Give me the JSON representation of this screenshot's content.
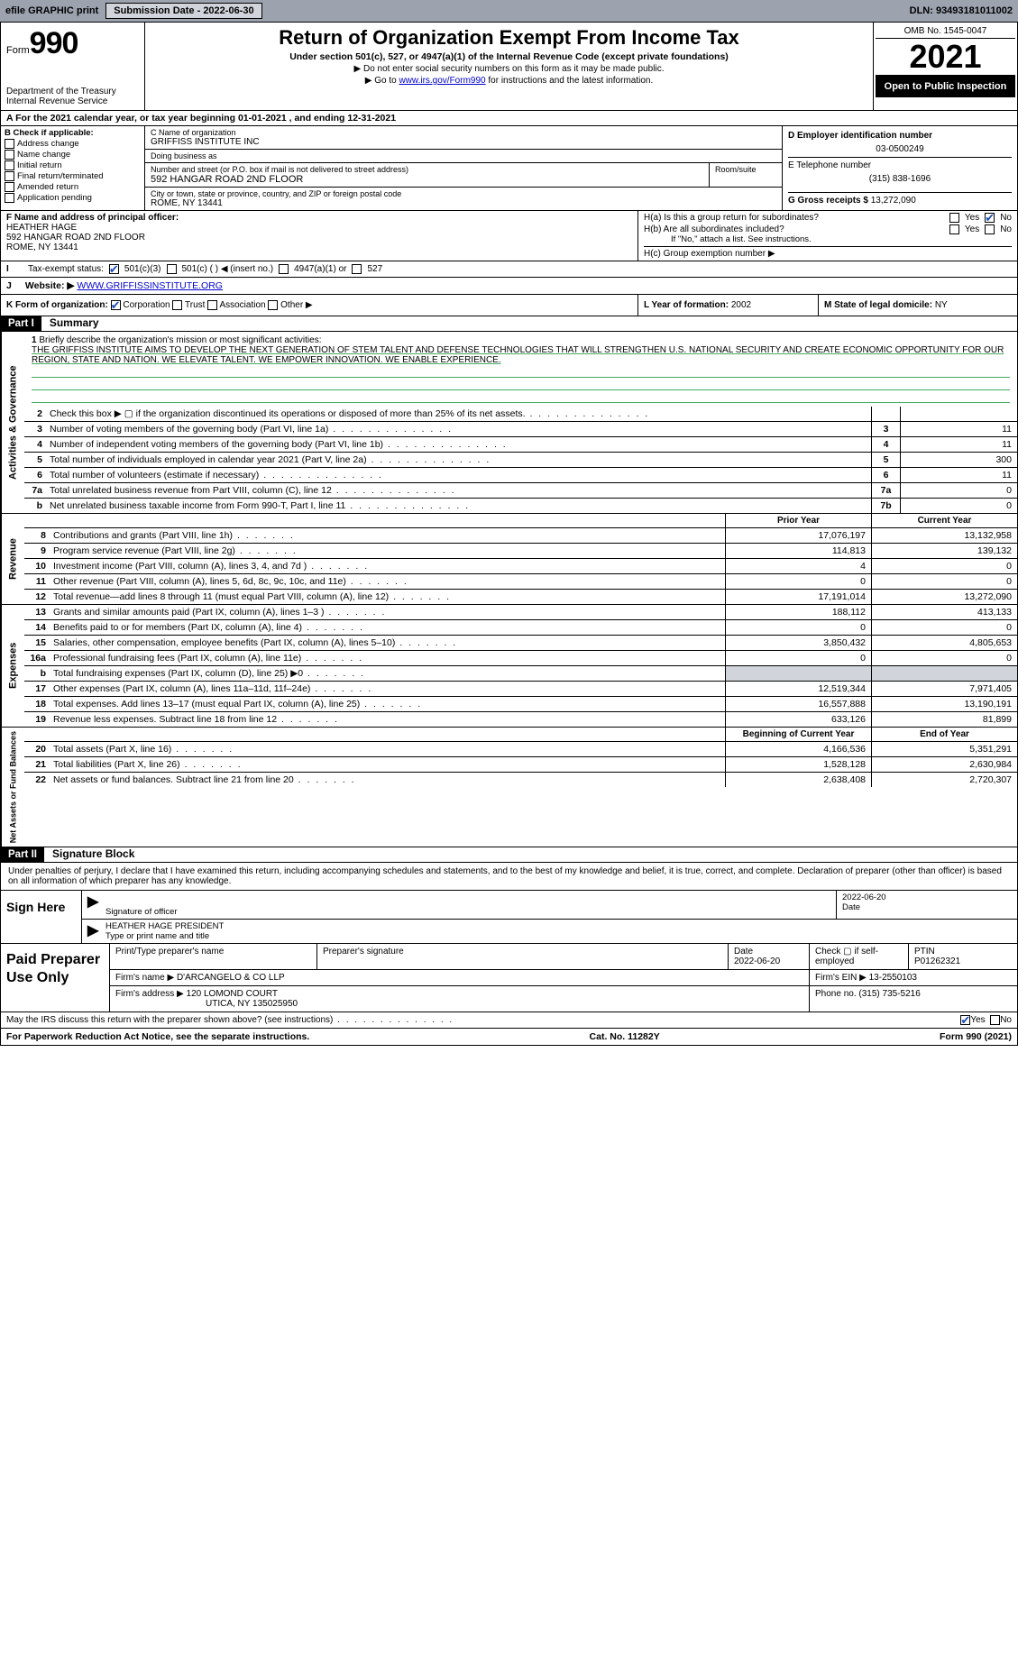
{
  "topbar": {
    "efile": "efile GRAPHIC print",
    "submission_label": "Submission Date - 2022-06-30",
    "dln": "DLN: 93493181011002"
  },
  "header": {
    "form_prefix": "Form",
    "form_number": "990",
    "title": "Return of Organization Exempt From Income Tax",
    "subtitle": "Under section 501(c), 527, or 4947(a)(1) of the Internal Revenue Code (except private foundations)",
    "note1": "▶ Do not enter social security numbers on this form as it may be made public.",
    "note2_pre": "▶ Go to ",
    "note2_link": "www.irs.gov/Form990",
    "note2_post": " for instructions and the latest information.",
    "dept": "Department of the Treasury",
    "irs": "Internal Revenue Service",
    "omb": "OMB No. 1545-0047",
    "year": "2021",
    "open_public": "Open to Public Inspection"
  },
  "period": {
    "label_a": "A For the 2021 calendar year, or tax year beginning ",
    "begin": "01-01-2021",
    "mid": "  , and ending ",
    "end": "12-31-2021"
  },
  "colB": {
    "header": "B Check if applicable:",
    "opts": [
      "Address change",
      "Name change",
      "Initial return",
      "Final return/terminated",
      "Amended return",
      "Application pending"
    ]
  },
  "colC": {
    "name_lbl": "C Name of organization",
    "name": "GRIFFISS INSTITUTE INC",
    "dba_lbl": "Doing business as",
    "dba": "",
    "street_lbl": "Number and street (or P.O. box if mail is not delivered to street address)",
    "room_lbl": "Room/suite",
    "street": "592 HANGAR ROAD 2ND FLOOR",
    "city_lbl": "City or town, state or province, country, and ZIP or foreign postal code",
    "city": "ROME, NY  13441"
  },
  "colD": {
    "ein_lbl": "D Employer identification number",
    "ein": "03-0500249",
    "phone_lbl": "E Telephone number",
    "phone": "(315) 838-1696",
    "gross_lbl": "G Gross receipts $ ",
    "gross": "13,272,090"
  },
  "rowF": {
    "lbl": "F Name and address of principal officer:",
    "name": "HEATHER HAGE",
    "addr1": "592 HANGAR ROAD 2ND FLOOR",
    "addr2": "ROME, NY  13441",
    "ha_lbl": "H(a)  Is this a group return for subordinates?",
    "hb_lbl": "H(b)  Are all subordinates included?",
    "hb_note": "If \"No,\" attach a list. See instructions.",
    "hc_lbl": "H(c)  Group exemption number ▶",
    "yes": "Yes",
    "no": "No"
  },
  "rowI": {
    "lbl": "Tax-exempt status:",
    "o1": "501(c)(3)",
    "o2": "501(c) (   ) ◀ (insert no.)",
    "o3": "4947(a)(1) or",
    "o4": "527"
  },
  "rowJ": {
    "lbl": "Website: ▶ ",
    "url": "WWW.GRIFFISSINSTITUTE.ORG"
  },
  "rowK": {
    "lbl": "K Form of organization:",
    "opts": [
      "Corporation",
      "Trust",
      "Association",
      "Other ▶"
    ],
    "l_lbl": "L Year of formation: ",
    "l_val": "2002",
    "m_lbl": "M State of legal domicile: ",
    "m_val": "NY"
  },
  "part1": {
    "hdr": "Part I",
    "title": "Summary"
  },
  "mission": {
    "num": "1",
    "lbl": "Briefly describe the organization's mission or most significant activities:",
    "text": "THE GRIFFISS INSTITUTE AIMS TO DEVELOP THE NEXT GENERATION OF STEM TALENT AND DEFENSE TECHNOLOGIES THAT WILL STRENGTHEN U.S. NATIONAL SECURITY AND CREATE ECONOMIC OPPORTUNITY FOR OUR REGION, STATE AND NATION. WE ELEVATE TALENT. WE EMPOWER INNOVATION. WE ENABLE EXPERIENCE."
  },
  "gov_rows": [
    {
      "n": "2",
      "txt": "Check this box ▶ ▢  if the organization discontinued its operations or disposed of more than 25% of its net assets.",
      "box": "",
      "val": ""
    },
    {
      "n": "3",
      "txt": "Number of voting members of the governing body (Part VI, line 1a)",
      "box": "3",
      "val": "11"
    },
    {
      "n": "4",
      "txt": "Number of independent voting members of the governing body (Part VI, line 1b)",
      "box": "4",
      "val": "11"
    },
    {
      "n": "5",
      "txt": "Total number of individuals employed in calendar year 2021 (Part V, line 2a)",
      "box": "5",
      "val": "300"
    },
    {
      "n": "6",
      "txt": "Total number of volunteers (estimate if necessary)",
      "box": "6",
      "val": "11"
    },
    {
      "n": "7a",
      "txt": "Total unrelated business revenue from Part VIII, column (C), line 12",
      "box": "7a",
      "val": "0"
    },
    {
      "n": "b",
      "txt": "Net unrelated business taxable income from Form 990-T, Part I, line 11",
      "box": "7b",
      "val": "0"
    }
  ],
  "col_hdrs": {
    "prior": "Prior Year",
    "current": "Current Year"
  },
  "revenue": [
    {
      "n": "8",
      "txt": "Contributions and grants (Part VIII, line 1h)",
      "p": "17,076,197",
      "c": "13,132,958"
    },
    {
      "n": "9",
      "txt": "Program service revenue (Part VIII, line 2g)",
      "p": "114,813",
      "c": "139,132"
    },
    {
      "n": "10",
      "txt": "Investment income (Part VIII, column (A), lines 3, 4, and 7d )",
      "p": "4",
      "c": "0"
    },
    {
      "n": "11",
      "txt": "Other revenue (Part VIII, column (A), lines 5, 6d, 8c, 9c, 10c, and 11e)",
      "p": "0",
      "c": "0"
    },
    {
      "n": "12",
      "txt": "Total revenue—add lines 8 through 11 (must equal Part VIII, column (A), line 12)",
      "p": "17,191,014",
      "c": "13,272,090"
    }
  ],
  "expenses": [
    {
      "n": "13",
      "txt": "Grants and similar amounts paid (Part IX, column (A), lines 1–3 )",
      "p": "188,112",
      "c": "413,133"
    },
    {
      "n": "14",
      "txt": "Benefits paid to or for members (Part IX, column (A), line 4)",
      "p": "0",
      "c": "0"
    },
    {
      "n": "15",
      "txt": "Salaries, other compensation, employee benefits (Part IX, column (A), lines 5–10)",
      "p": "3,850,432",
      "c": "4,805,653"
    },
    {
      "n": "16a",
      "txt": "Professional fundraising fees (Part IX, column (A), line 11e)",
      "p": "0",
      "c": "0"
    },
    {
      "n": "b",
      "txt": "Total fundraising expenses (Part IX, column (D), line 25) ▶0",
      "p": "",
      "c": "",
      "grey": true
    },
    {
      "n": "17",
      "txt": "Other expenses (Part IX, column (A), lines 11a–11d, 11f–24e)",
      "p": "12,519,344",
      "c": "7,971,405"
    },
    {
      "n": "18",
      "txt": "Total expenses. Add lines 13–17 (must equal Part IX, column (A), line 25)",
      "p": "16,557,888",
      "c": "13,190,191"
    },
    {
      "n": "19",
      "txt": "Revenue less expenses. Subtract line 18 from line 12",
      "p": "633,126",
      "c": "81,899"
    }
  ],
  "net_hdrs": {
    "begin": "Beginning of Current Year",
    "end": "End of Year"
  },
  "netassets": [
    {
      "n": "20",
      "txt": "Total assets (Part X, line 16)",
      "p": "4,166,536",
      "c": "5,351,291"
    },
    {
      "n": "21",
      "txt": "Total liabilities (Part X, line 26)",
      "p": "1,528,128",
      "c": "2,630,984"
    },
    {
      "n": "22",
      "txt": "Net assets or fund balances. Subtract line 21 from line 20",
      "p": "2,638,408",
      "c": "2,720,307"
    }
  ],
  "vtabs": {
    "gov": "Activities & Governance",
    "rev": "Revenue",
    "exp": "Expenses",
    "net": "Net Assets or Fund Balances"
  },
  "part2": {
    "hdr": "Part II",
    "title": "Signature Block"
  },
  "sig": {
    "intro": "Under penalties of perjury, I declare that I have examined this return, including accompanying schedules and statements, and to the best of my knowledge and belief, it is true, correct, and complete. Declaration of preparer (other than officer) is based on all information of which preparer has any knowledge.",
    "sign_here": "Sign Here",
    "sig_of_officer": "Signature of officer",
    "date_lbl": "Date",
    "date": "2022-06-20",
    "name": "HEATHER HAGE PRESIDENT",
    "name_lbl": "Type or print name and title"
  },
  "paid": {
    "hdr": "Paid Preparer Use Only",
    "r1": {
      "c1": "Print/Type preparer's name",
      "c2": "Preparer's signature",
      "c3_lbl": "Date",
      "c3": "2022-06-20",
      "c4": "Check ▢ if self-employed",
      "c5_lbl": "PTIN",
      "c5": "P01262321"
    },
    "r2": {
      "lbl": "Firm's name     ▶",
      "val": "D'ARCANGELO & CO LLP",
      "ein_lbl": "Firm's EIN ▶",
      "ein": "13-2550103"
    },
    "r3": {
      "lbl": "Firm's address ▶",
      "val1": "120 LOMOND COURT",
      "val2": "UTICA, NY  135025950",
      "ph_lbl": "Phone no.",
      "ph": "(315) 735-5216"
    }
  },
  "footer": {
    "q": "May the IRS discuss this return with the preparer shown above? (see instructions)",
    "yes": "Yes",
    "no": "No",
    "pra": "For Paperwork Reduction Act Notice, see the separate instructions.",
    "cat": "Cat. No. 11282Y",
    "form": "Form 990 (2021)"
  }
}
